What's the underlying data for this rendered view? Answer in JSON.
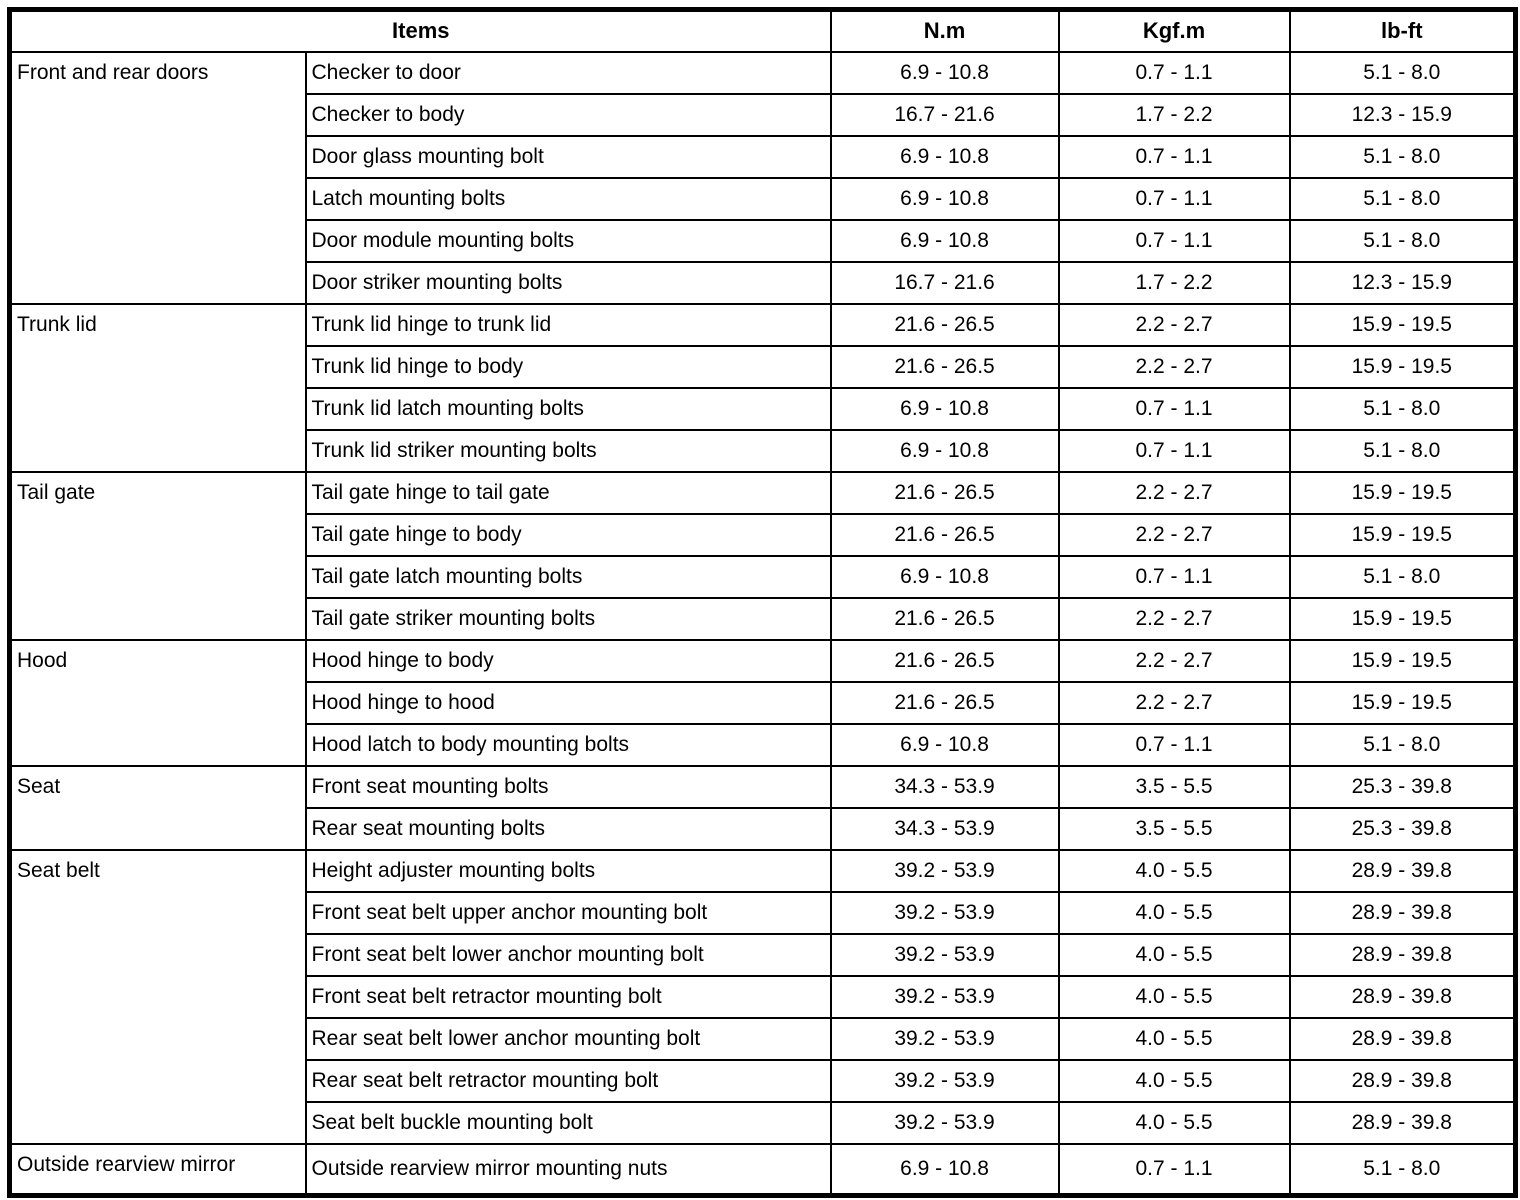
{
  "table": {
    "headers": {
      "items": "Items",
      "nm": "N.m",
      "kgfm": "Kgf.m",
      "lbft": "lb-ft"
    },
    "groups": [
      {
        "category": "Front and rear doors",
        "rows": [
          {
            "item": "Checker to door",
            "nm": "6.9 - 10.8",
            "kgfm": "0.7 - 1.1",
            "lbft": "5.1 - 8.0"
          },
          {
            "item": "Checker to body",
            "nm": "16.7 - 21.6",
            "kgfm": "1.7 - 2.2",
            "lbft": "12.3 - 15.9"
          },
          {
            "item": "Door glass mounting bolt",
            "nm": "6.9 - 10.8",
            "kgfm": "0.7 - 1.1",
            "lbft": "5.1 - 8.0"
          },
          {
            "item": "Latch mounting bolts",
            "nm": "6.9 - 10.8",
            "kgfm": "0.7 - 1.1",
            "lbft": "5.1 - 8.0"
          },
          {
            "item": "Door module mounting bolts",
            "nm": "6.9 - 10.8",
            "kgfm": "0.7 - 1.1",
            "lbft": "5.1 - 8.0"
          },
          {
            "item": "Door striker mounting bolts",
            "nm": "16.7 - 21.6",
            "kgfm": "1.7 - 2.2",
            "lbft": "12.3 - 15.9"
          }
        ]
      },
      {
        "category": "Trunk lid",
        "rows": [
          {
            "item": "Trunk lid hinge to trunk lid",
            "nm": "21.6 - 26.5",
            "kgfm": "2.2 - 2.7",
            "lbft": "15.9 - 19.5"
          },
          {
            "item": "Trunk lid hinge to body",
            "nm": "21.6 - 26.5",
            "kgfm": "2.2 - 2.7",
            "lbft": "15.9 - 19.5"
          },
          {
            "item": "Trunk lid latch mounting bolts",
            "nm": "6.9 - 10.8",
            "kgfm": "0.7 - 1.1",
            "lbft": "5.1 - 8.0"
          },
          {
            "item": "Trunk lid striker mounting bolts",
            "nm": "6.9 - 10.8",
            "kgfm": "0.7 - 1.1",
            "lbft": "5.1 - 8.0"
          }
        ]
      },
      {
        "category": "Tail gate",
        "rows": [
          {
            "item": "Tail gate hinge to tail gate",
            "nm": "21.6 - 26.5",
            "kgfm": "2.2 - 2.7",
            "lbft": "15.9 - 19.5"
          },
          {
            "item": "Tail gate hinge to body",
            "nm": "21.6 - 26.5",
            "kgfm": "2.2 - 2.7",
            "lbft": "15.9 - 19.5"
          },
          {
            "item": "Tail gate latch mounting bolts",
            "nm": "6.9 - 10.8",
            "kgfm": "0.7 - 1.1",
            "lbft": "5.1 - 8.0"
          },
          {
            "item": "Tail gate striker mounting bolts",
            "nm": "21.6 - 26.5",
            "kgfm": "2.2 - 2.7",
            "lbft": "15.9 - 19.5"
          }
        ]
      },
      {
        "category": "Hood",
        "rows": [
          {
            "item": "Hood hinge to body",
            "nm": "21.6 - 26.5",
            "kgfm": "2.2 - 2.7",
            "lbft": "15.9 - 19.5"
          },
          {
            "item": "Hood hinge to hood",
            "nm": "21.6 - 26.5",
            "kgfm": "2.2 - 2.7",
            "lbft": "15.9 - 19.5"
          },
          {
            "item": "Hood latch to body mounting bolts",
            "nm": "6.9 - 10.8",
            "kgfm": "0.7 - 1.1",
            "lbft": "5.1 - 8.0"
          }
        ]
      },
      {
        "category": "Seat",
        "rows": [
          {
            "item": "Front seat mounting bolts",
            "nm": "34.3 - 53.9",
            "kgfm": "3.5 - 5.5",
            "lbft": "25.3 - 39.8"
          },
          {
            "item": "Rear seat mounting bolts",
            "nm": "34.3 - 53.9",
            "kgfm": "3.5 - 5.5",
            "lbft": "25.3 - 39.8"
          }
        ]
      },
      {
        "category": "Seat belt",
        "rows": [
          {
            "item": "Height adjuster mounting bolts",
            "nm": "39.2 - 53.9",
            "kgfm": "4.0 - 5.5",
            "lbft": "28.9 - 39.8"
          },
          {
            "item": "Front seat belt upper anchor mounting bolt",
            "nm": "39.2 - 53.9",
            "kgfm": "4.0 - 5.5",
            "lbft": "28.9 - 39.8"
          },
          {
            "item": "Front seat belt lower anchor mounting bolt",
            "nm": "39.2 - 53.9",
            "kgfm": "4.0 - 5.5",
            "lbft": "28.9 - 39.8"
          },
          {
            "item": "Front seat belt retractor mounting bolt",
            "nm": "39.2 - 53.9",
            "kgfm": "4.0 - 5.5",
            "lbft": "28.9 - 39.8"
          },
          {
            "item": "Rear seat belt lower anchor mounting bolt",
            "nm": "39.2 - 53.9",
            "kgfm": "4.0 - 5.5",
            "lbft": "28.9 - 39.8"
          },
          {
            "item": "Rear seat belt retractor mounting bolt",
            "nm": "39.2 - 53.9",
            "kgfm": "4.0 - 5.5",
            "lbft": "28.9 - 39.8"
          },
          {
            "item": "Seat belt buckle mounting bolt",
            "nm": "39.2 - 53.9",
            "kgfm": "4.0 - 5.5",
            "lbft": "28.9 - 39.8"
          }
        ]
      },
      {
        "category": "Outside rearview mirror",
        "rows": [
          {
            "item": "Outside rearview mirror mounting nuts",
            "nm": "6.9 - 10.8",
            "kgfm": "0.7 - 1.1",
            "lbft": "5.1 - 8.0"
          }
        ]
      }
    ]
  }
}
